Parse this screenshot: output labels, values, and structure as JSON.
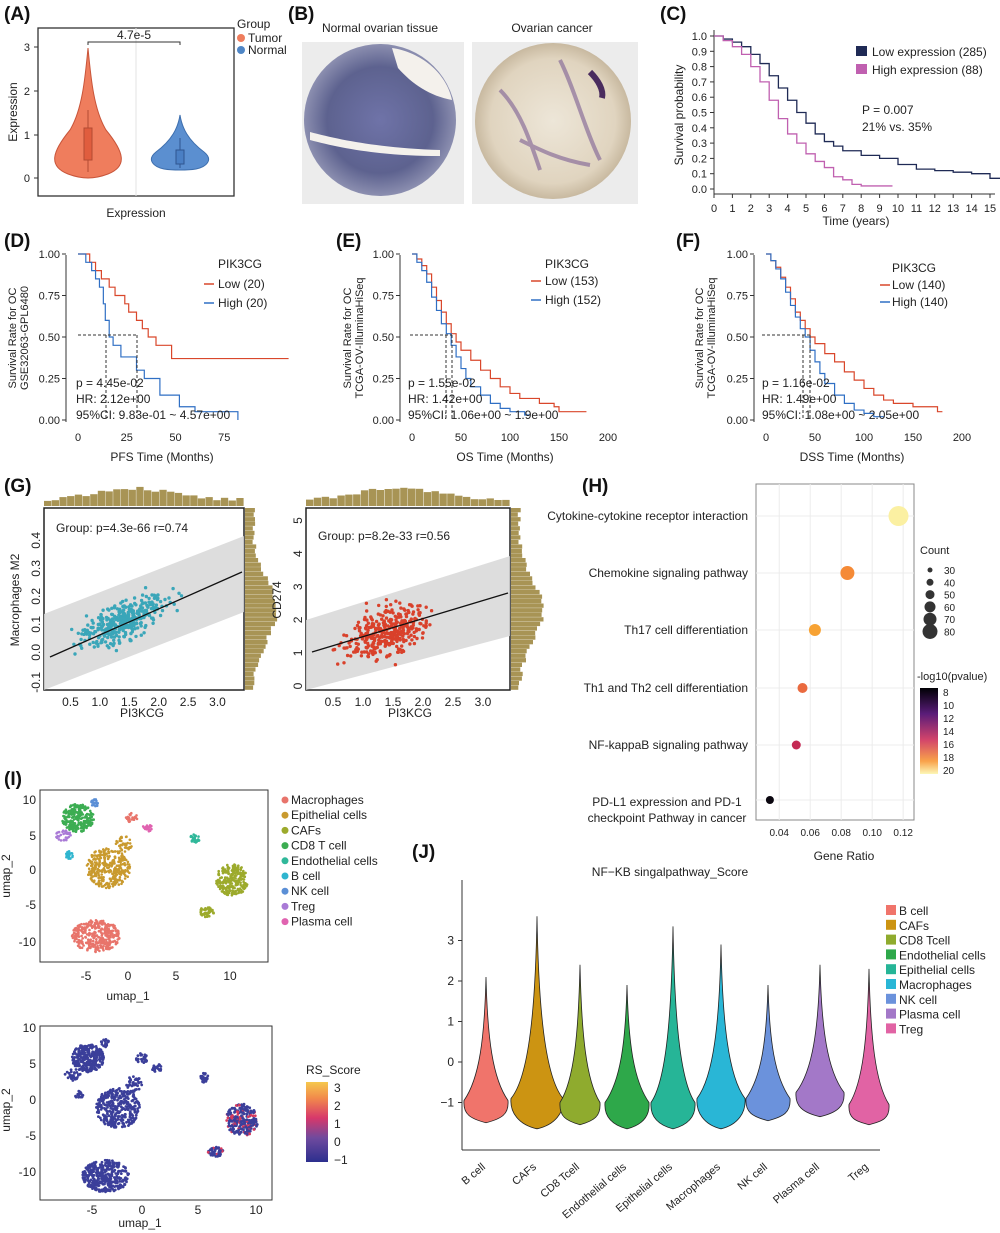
{
  "panels": {
    "A": {
      "label": "(A)",
      "pvalue": "4.7e-5",
      "xlabel": "Expression",
      "ylabel": "Expression",
      "yticks": [
        "0",
        "1",
        "2",
        "3"
      ],
      "legend_title": "Group",
      "groups": [
        {
          "name": "Tumor",
          "color": "#ef7d5d"
        },
        {
          "name": "Normal",
          "color": "#4f86c6"
        }
      ]
    },
    "B": {
      "label": "(B)",
      "titles": [
        "Normal ovarian tissue",
        "Ovarian cancer"
      ]
    },
    "C": {
      "label": "(C)",
      "ylabel": "Survival probability",
      "xlabel": "Time (years)",
      "yticks": [
        "0.0",
        "0.1",
        "0.2",
        "0.3",
        "0.4",
        "0.5",
        "0.6",
        "0.7",
        "0.8",
        "0.9",
        "1.0"
      ],
      "xticks": [
        "0",
        "1",
        "2",
        "3",
        "4",
        "5",
        "6",
        "7",
        "8",
        "9",
        "10",
        "11",
        "12",
        "13",
        "14",
        "15"
      ],
      "legend": [
        {
          "name": "Low expression (285)",
          "color": "#1f2a55"
        },
        {
          "name": "High expression (88)",
          "color": "#c060b0"
        }
      ],
      "annotation": [
        "P = 0.007",
        "21% vs. 35%"
      ]
    },
    "D": {
      "label": "(D)",
      "ylabel": [
        "Survival Rate for OC",
        "GSE32063-GPL6480"
      ],
      "xlabel": "PFS Time (Months)",
      "yticks": [
        "0.00",
        "0.25",
        "0.50",
        "0.75",
        "1.00"
      ],
      "xticks": [
        "0",
        "25",
        "50",
        "75"
      ],
      "gene": "PIK3CG",
      "legend": [
        "Low (20)",
        "High (20)"
      ],
      "stats": [
        "p = 4.45e-02",
        "HR: 2.12e+00",
        "95%CI: 9.83e-01 ~ 4.57e+00"
      ]
    },
    "E": {
      "label": "(E)",
      "ylabel": [
        "Survival Rate for OC",
        "TCGA-OV-IlluminaHiSeq"
      ],
      "xlabel": "OS Time (Months)",
      "yticks": [
        "0.00",
        "0.25",
        "0.50",
        "0.75",
        "1.00"
      ],
      "xticks": [
        "0",
        "50",
        "100",
        "150",
        "200"
      ],
      "gene": "PIK3CG",
      "legend": [
        "Low (153)",
        "High (152)"
      ],
      "stats": [
        "p = 1.55e-02",
        "HR: 1.42e+00",
        "95%CI: 1.06e+00 ~ 1.9e+00"
      ]
    },
    "F": {
      "label": "(F)",
      "ylabel": [
        "Survival Rate for OC",
        "TCGA-OV-IlluminaHiSeq"
      ],
      "xlabel": "DSS Time (Months)",
      "yticks": [
        "0.00",
        "0.25",
        "0.50",
        "0.75",
        "1.00"
      ],
      "xticks": [
        "0",
        "50",
        "100",
        "150",
        "200"
      ],
      "gene": "PIK3CG",
      "legend": [
        "Low (140)",
        "High (140)"
      ],
      "stats": [
        "p = 1.16e-02",
        "HR: 1.49e+00",
        "95%CI: 1.08e+00 ~ 2.05e+00"
      ]
    },
    "G": {
      "label": "(G)",
      "left": {
        "annotation": "Group: p=4.3e-66 r=0.74",
        "ylabel": "Macrophages M2",
        "xlabel": "PI3KCG",
        "yticks": [
          "-0.1",
          "0.0",
          "0.1",
          "0.2",
          "0.3",
          "0.4"
        ],
        "xticks": [
          "0.5",
          "1.0",
          "1.5",
          "2.0",
          "2.5",
          "3.0"
        ],
        "color": "#3aa6b9"
      },
      "right": {
        "annotation": "Group: p=8.2e-33 r=0.56",
        "ylabel": "CD274",
        "xlabel": "PI3KCG",
        "yticks": [
          "0",
          "1",
          "2",
          "3",
          "4",
          "5"
        ],
        "xticks": [
          "0.5",
          "1.0",
          "1.5",
          "2.0",
          "2.5",
          "3.0"
        ],
        "color": "#d9412b"
      }
    },
    "H": {
      "label": "(H)",
      "xlabel": "Gene Ratio",
      "pathways": [
        "Cytokine-cytokine receptor interaction",
        "Chemokine signaling pathway",
        "Th17 cell differentiation",
        "Th1 and Th2 cell differentiation",
        "NF-kappaB signaling pathway",
        "PD-L1 expression and PD-1",
        "checkpoint Pathway in cancer"
      ],
      "xticks": [
        "0.04",
        "0.06",
        "0.08",
        "0.10",
        "0.12"
      ],
      "count_title": "Count",
      "count_levels": [
        "30",
        "40",
        "50",
        "60",
        "70",
        "80"
      ],
      "color_title": "-log10(pvalue)",
      "color_levels": [
        "8",
        "10",
        "12",
        "14",
        "16",
        "18",
        "20"
      ]
    },
    "I": {
      "label": "(I)",
      "top": {
        "xlabel": "umap_1",
        "ylabel": "umap_2",
        "xticks": [
          "-5",
          "0",
          "5",
          "10"
        ],
        "yticks": [
          "10",
          "5",
          "0",
          "-5",
          "-10"
        ],
        "legend": [
          {
            "name": "Macrophages",
            "color": "#e8746b"
          },
          {
            "name": "Epithelial cells",
            "color": "#c99a2e"
          },
          {
            "name": "CAFs",
            "color": "#9caa2c"
          },
          {
            "name": "CD8 T cell",
            "color": "#3cad52"
          },
          {
            "name": "Endothelial cells",
            "color": "#30b89a"
          },
          {
            "name": "B cell",
            "color": "#2fb5cf"
          },
          {
            "name": "NK cell",
            "color": "#5b8fd6"
          },
          {
            "name": "Treg",
            "color": "#a97ad6"
          },
          {
            "name": "Plasma cell",
            "color": "#e063b0"
          }
        ]
      },
      "bottom": {
        "xlabel": "umap_1",
        "ylabel": "umap_2",
        "xticks": [
          "-5",
          "0",
          "5",
          "10"
        ],
        "yticks": [
          "10",
          "5",
          "0",
          "-5",
          "-10"
        ],
        "legend_title": "RS_Score",
        "levels": [
          "3",
          "2",
          "1",
          "0",
          "−1"
        ]
      }
    },
    "J": {
      "label": "(J)",
      "title": "NF−KB singalpathway_Score",
      "yticks": [
        "3",
        "2",
        "1",
        "0",
        "−1"
      ],
      "categories": [
        "B cell",
        "CAFs",
        "CD8 Tcell",
        "Endothelial cells",
        "Epithelial cells",
        "Macrophages",
        "NK cell",
        "Plasma cell",
        "Treg"
      ],
      "colors": [
        "#f0746b",
        "#cc9412",
        "#8fab2e",
        "#2ea84a",
        "#26b597",
        "#29b6d6",
        "#6b92dc",
        "#a378c8",
        "#e163a4"
      ],
      "legend": [
        "B cell",
        "CAFs",
        "CD8 Tcell",
        "Endothelial cells",
        "Epithelial cells",
        "Macrophages",
        "NK cell",
        "Plasma cell",
        "Treg"
      ]
    }
  }
}
